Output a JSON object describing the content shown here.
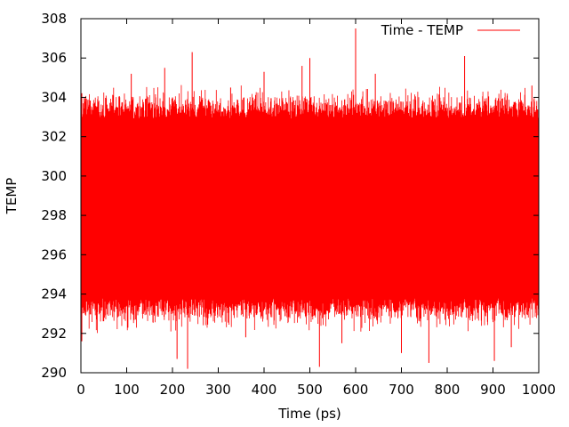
{
  "chart_data": {
    "type": "line",
    "title": "",
    "xlabel": "Time (ps)",
    "ylabel": "TEMP",
    "xlim": [
      0,
      1000
    ],
    "ylim": [
      290,
      308
    ],
    "xticks": [
      0,
      100,
      200,
      300,
      400,
      500,
      600,
      700,
      800,
      900,
      1000
    ],
    "yticks": [
      290,
      292,
      294,
      296,
      298,
      300,
      302,
      304,
      306,
      308
    ],
    "grid": false,
    "legend_position": "top-right",
    "series": [
      {
        "name": "Time - TEMP",
        "color": "#ff0000",
        "x_range": [
          0,
          1000
        ],
        "mean": 298.2,
        "band_low": 293.8,
        "band_high": 302.9,
        "min": 290.2,
        "max": 307.5,
        "extremes": [
          {
            "x": 2,
            "y": 291.6
          },
          {
            "x": 55,
            "y": 293.4
          },
          {
            "x": 110,
            "y": 305.2
          },
          {
            "x": 183,
            "y": 305.5
          },
          {
            "x": 210,
            "y": 290.7
          },
          {
            "x": 233,
            "y": 290.2
          },
          {
            "x": 243,
            "y": 306.3
          },
          {
            "x": 327,
            "y": 304.5
          },
          {
            "x": 360,
            "y": 291.8
          },
          {
            "x": 400,
            "y": 305.3
          },
          {
            "x": 483,
            "y": 305.6
          },
          {
            "x": 500,
            "y": 306.0
          },
          {
            "x": 521,
            "y": 290.3
          },
          {
            "x": 570,
            "y": 291.5
          },
          {
            "x": 600,
            "y": 307.5
          },
          {
            "x": 643,
            "y": 305.2
          },
          {
            "x": 700,
            "y": 291.0
          },
          {
            "x": 760,
            "y": 290.5
          },
          {
            "x": 838,
            "y": 306.1
          },
          {
            "x": 903,
            "y": 290.6
          },
          {
            "x": 940,
            "y": 291.3
          },
          {
            "x": 985,
            "y": 304.6
          }
        ]
      }
    ]
  }
}
